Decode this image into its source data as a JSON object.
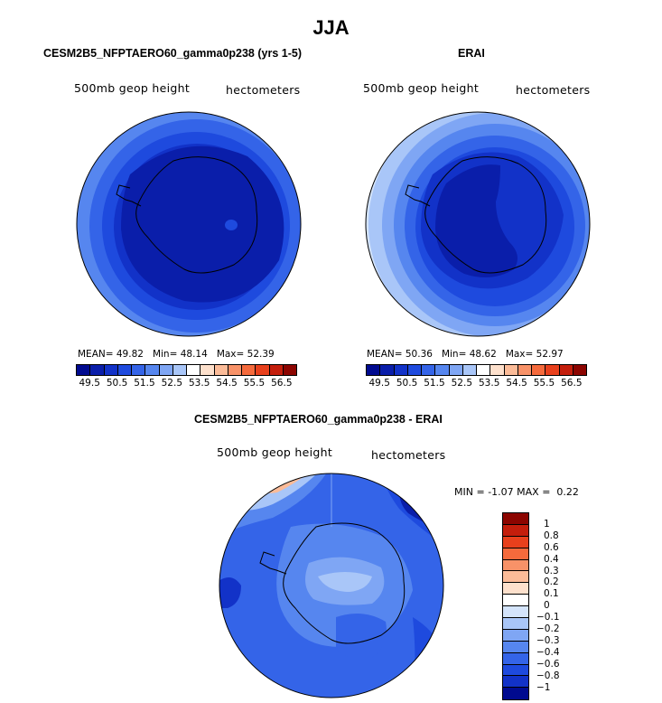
{
  "figure": {
    "title": "JJA",
    "panels": [
      {
        "title": "CESM2B5_NFPTAERO60_gamma0p238 (yrs 1-5)",
        "field_label": "500mb geop height",
        "units_label": "hectometers",
        "stats": {
          "mean_label": "MEAN=",
          "mean": "49.82",
          "min_label": "Min=",
          "min": "48.14",
          "max_label": "Max=",
          "max": "52.39"
        }
      },
      {
        "title": "ERAI",
        "field_label": "500mb geop height",
        "units_label": "hectometers",
        "stats": {
          "mean_label": "MEAN=",
          "mean": "50.36",
          "min_label": "Min=",
          "min": "48.62",
          "max_label": "Max=",
          "max": "52.97"
        }
      },
      {
        "title": "CESM2B5_NFPTAERO60_gamma0p238 - ERAI",
        "field_label": "500mb geop height",
        "units_label": "hectometers",
        "stats": {
          "min_label": "MIN =",
          "min": "-1.07",
          "max_label": "MAX =",
          "max": "0.22"
        }
      }
    ],
    "colorbar_abs": {
      "colors": [
        "#000a8f",
        "#0a1eaa",
        "#1232c8",
        "#1e4ade",
        "#3464e8",
        "#5686ef",
        "#7fa6f4",
        "#a9c6f8",
        "#ffffff",
        "#fde0cc",
        "#fbbb98",
        "#f89268",
        "#f56a3c",
        "#e8401c",
        "#c41e0c",
        "#8c0500"
      ],
      "tick_labels": [
        "49.5",
        "50.5",
        "51.5",
        "52.5",
        "53.5",
        "54.5",
        "55.5",
        "56.5"
      ]
    },
    "colorbar_diff": {
      "colors": [
        "#8c0500",
        "#c41e0c",
        "#e8401c",
        "#f56a3c",
        "#f89268",
        "#fbbb98",
        "#fde0cc",
        "#ffffff",
        "#d4e4fb",
        "#a9c6f8",
        "#7fa6f4",
        "#5686ef",
        "#3464e8",
        "#1e4ade",
        "#1232c8",
        "#000a8f"
      ],
      "tick_labels": [
        "1",
        "0.8",
        "0.6",
        "0.4",
        "0.3",
        "0.2",
        "0.1",
        "0",
        "−0.1",
        "−0.2",
        "−0.3",
        "−0.4",
        "−0.6",
        "−0.8",
        "−1"
      ]
    }
  }
}
